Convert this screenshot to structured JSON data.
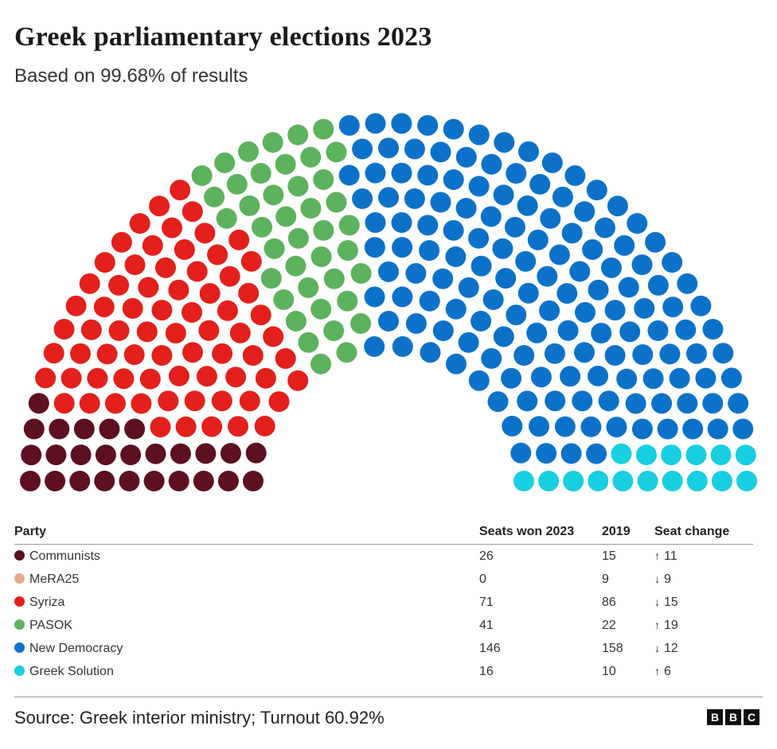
{
  "header": {
    "title": "Greek parliamentary elections 2023",
    "subtitle": "Based on 99.68% of results"
  },
  "chart_data": {
    "type": "parliament",
    "title": "Greek parliamentary elections 2023",
    "subtitle": "Based on 99.68% of results",
    "total_seats": 300,
    "parties": [
      {
        "name": "Communists",
        "seats_2023": 26,
        "seats_2019": 15,
        "change": "11",
        "direction": "up",
        "color": "#5c1020"
      },
      {
        "name": "MeRA25",
        "seats_2023": 0,
        "seats_2019": 9,
        "change": "9",
        "direction": "down",
        "color": "#e8a98a"
      },
      {
        "name": "Syriza",
        "seats_2023": 71,
        "seats_2019": 86,
        "change": "15",
        "direction": "down",
        "color": "#e3201b"
      },
      {
        "name": "PASOK",
        "seats_2023": 41,
        "seats_2019": 22,
        "change": "19",
        "direction": "up",
        "color": "#5db25d"
      },
      {
        "name": "New Democracy",
        "seats_2023": 146,
        "seats_2019": 158,
        "change": "12",
        "direction": "down",
        "color": "#0c72c9"
      },
      {
        "name": "Greek Solution",
        "seats_2023": 16,
        "seats_2019": 10,
        "change": "6",
        "direction": "up",
        "color": "#17cfe0"
      }
    ]
  },
  "table": {
    "headers": {
      "party": "Party",
      "seats": "Seats won 2023",
      "prev": "2019",
      "change": "Seat change"
    },
    "arrows": {
      "up": "↑",
      "down": "↓"
    }
  },
  "footer": {
    "source": "Source: Greek interior ministry; Turnout 60.92%",
    "logo_letters": [
      "B",
      "B",
      "C"
    ]
  }
}
